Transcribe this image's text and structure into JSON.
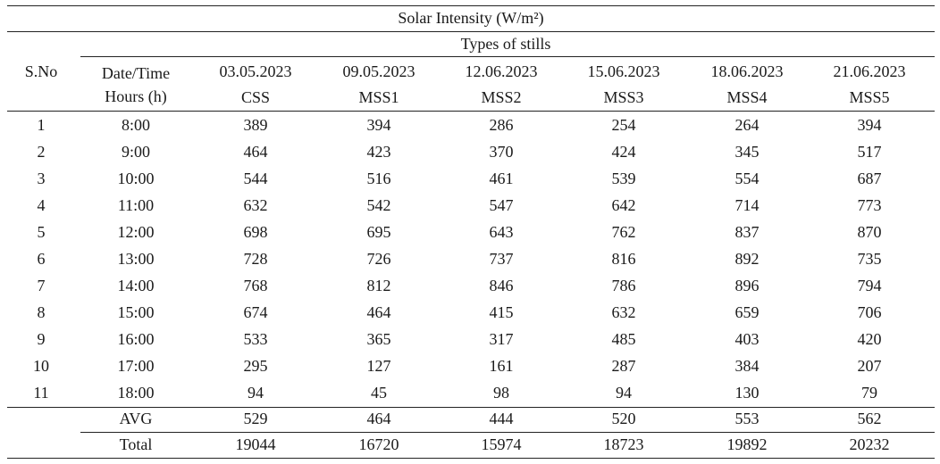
{
  "table": {
    "caption": "Solar Intensity (W/m²)",
    "group_header": "Types of stills",
    "sno_header": "S.No",
    "datetime_header": "Date/Time",
    "hours_header": "Hours (h)",
    "dates": [
      "03.05.2023",
      "09.05.2023",
      "12.06.2023",
      "15.06.2023",
      "18.06.2023",
      "21.06.2023"
    ],
    "stills": [
      "CSS",
      "MSS1",
      "MSS2",
      "MSS3",
      "MSS4",
      "MSS5"
    ],
    "rows": [
      {
        "sno": "1",
        "time": "8:00",
        "values": [
          "389",
          "394",
          "286",
          "254",
          "264",
          "394"
        ]
      },
      {
        "sno": "2",
        "time": "9:00",
        "values": [
          "464",
          "423",
          "370",
          "424",
          "345",
          "517"
        ]
      },
      {
        "sno": "3",
        "time": "10:00",
        "values": [
          "544",
          "516",
          "461",
          "539",
          "554",
          "687"
        ]
      },
      {
        "sno": "4",
        "time": "11:00",
        "values": [
          "632",
          "542",
          "547",
          "642",
          "714",
          "773"
        ]
      },
      {
        "sno": "5",
        "time": "12:00",
        "values": [
          "698",
          "695",
          "643",
          "762",
          "837",
          "870"
        ]
      },
      {
        "sno": "6",
        "time": "13:00",
        "values": [
          "728",
          "726",
          "737",
          "816",
          "892",
          "735"
        ]
      },
      {
        "sno": "7",
        "time": "14:00",
        "values": [
          "768",
          "812",
          "846",
          "786",
          "896",
          "794"
        ]
      },
      {
        "sno": "8",
        "time": "15:00",
        "values": [
          "674",
          "464",
          "415",
          "632",
          "659",
          "706"
        ]
      },
      {
        "sno": "9",
        "time": "16:00",
        "values": [
          "533",
          "365",
          "317",
          "485",
          "403",
          "420"
        ]
      },
      {
        "sno": "10",
        "time": "17:00",
        "values": [
          "295",
          "127",
          "161",
          "287",
          "384",
          "207"
        ]
      },
      {
        "sno": "11",
        "time": "18:00",
        "values": [
          "94",
          "45",
          "98",
          "94",
          "130",
          "79"
        ]
      }
    ],
    "summary": [
      {
        "label": "AVG",
        "values": [
          "529",
          "464",
          "444",
          "520",
          "553",
          "562"
        ]
      },
      {
        "label": "Total",
        "values": [
          "19044",
          "16720",
          "15974",
          "18723",
          "19892",
          "20232"
        ]
      }
    ]
  }
}
